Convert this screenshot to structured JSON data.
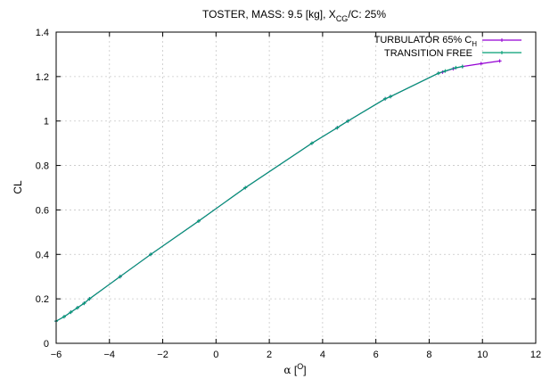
{
  "chart_data": {
    "type": "line",
    "title": {
      "prefix": "TOSTER,   MASS: 9.5 [kg],   X",
      "sub": "CG",
      "suffix": "/C: 25%"
    },
    "xlabel": {
      "symbol": "α",
      "open": " [",
      "sup": "O",
      "close": "]"
    },
    "ylabel": "CL",
    "xlim": [
      -6,
      12
    ],
    "ylim": [
      0,
      1.4
    ],
    "xticks": [
      -6,
      -4,
      -2,
      0,
      2,
      4,
      6,
      8,
      10,
      12
    ],
    "yticks": [
      0,
      0.2,
      0.4,
      0.6,
      0.8,
      1,
      1.2,
      1.4
    ],
    "xtick_labels": [
      "−6",
      "−4",
      "−2",
      "0",
      "2",
      "4",
      "6",
      "8",
      "10",
      "12"
    ],
    "ytick_labels": [
      "0",
      "0.2",
      "0.4",
      "0.6",
      "0.8",
      "1",
      "1.2",
      "1.4"
    ],
    "grid": true,
    "legend_position": "top-right",
    "series": [
      {
        "name": "TURBULATOR 65% C",
        "name_sub": "H",
        "color": "#9400d3",
        "x": [
          -6,
          -5.7,
          -5.45,
          -5.2,
          -4.95,
          -4.75,
          -3.6,
          -2.45,
          -0.65,
          1.1,
          3.6,
          4.55,
          4.95,
          6.35,
          6.55,
          8.35,
          8.5,
          8.9,
          9.25,
          9.95,
          10.65
        ],
        "y": [
          0.1,
          0.12,
          0.14,
          0.16,
          0.18,
          0.2,
          0.3,
          0.4,
          0.55,
          0.7,
          0.9,
          0.97,
          1.0,
          1.1,
          1.11,
          1.215,
          1.22,
          1.235,
          1.245,
          1.258,
          1.27
        ]
      },
      {
        "name": "TRANSITION FREE",
        "color": "#009e73",
        "x": [
          -6,
          -5.7,
          -5.45,
          -5.2,
          -4.95,
          -4.75,
          -3.6,
          -2.45,
          -0.65,
          1.1,
          3.6,
          4.55,
          4.95,
          6.35,
          6.55,
          8.35,
          8.6,
          9.0,
          9.25
        ],
        "y": [
          0.1,
          0.12,
          0.14,
          0.16,
          0.18,
          0.2,
          0.3,
          0.4,
          0.55,
          0.7,
          0.9,
          0.97,
          1.0,
          1.1,
          1.11,
          1.215,
          1.225,
          1.24,
          1.245
        ]
      }
    ]
  }
}
